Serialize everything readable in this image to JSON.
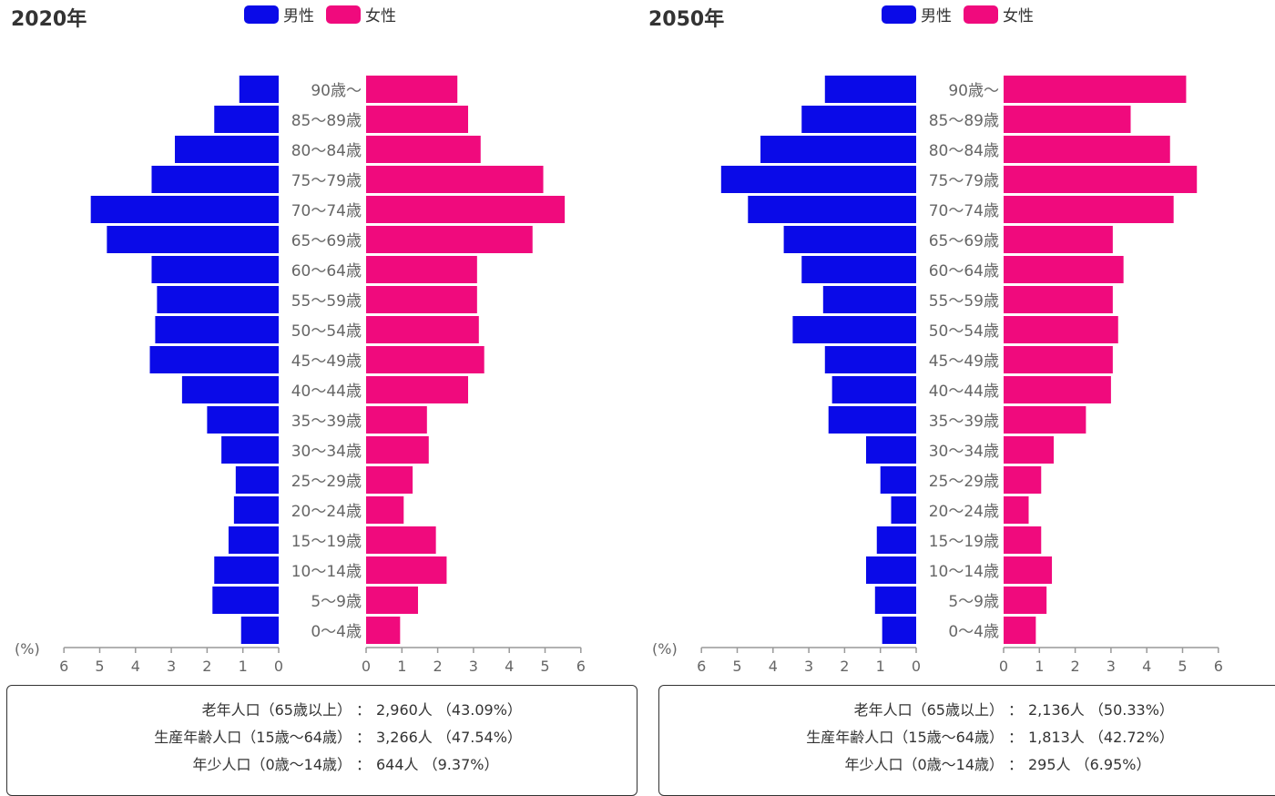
{
  "legend": {
    "male": "男性",
    "female": "女性"
  },
  "colors": {
    "male": "#0a0ae8",
    "female": "#f00a7d",
    "label": "#666666",
    "axis": "#999999",
    "title": "#333333"
  },
  "unit_label": "(%)",
  "age_groups": [
    "90歳〜",
    "85〜89歳",
    "80〜84歳",
    "75〜79歳",
    "70〜74歳",
    "65〜69歳",
    "60〜64歳",
    "55〜59歳",
    "50〜54歳",
    "45〜49歳",
    "40〜44歳",
    "35〜39歳",
    "30〜34歳",
    "25〜29歳",
    "20〜24歳",
    "15〜19歳",
    "10〜14歳",
    "5〜9歳",
    "0〜4歳"
  ],
  "chart_data": [
    {
      "type": "bar",
      "title": "2020年",
      "categories": [
        "90歳〜",
        "85〜89歳",
        "80〜84歳",
        "75〜79歳",
        "70〜74歳",
        "65〜69歳",
        "60〜64歳",
        "55〜59歳",
        "50〜54歳",
        "45〜49歳",
        "40〜44歳",
        "35〜39歳",
        "30〜34歳",
        "25〜29歳",
        "20〜24歳",
        "15〜19歳",
        "10〜14歳",
        "5〜9歳",
        "0〜4歳"
      ],
      "series": [
        {
          "name": "男性",
          "values": [
            1.1,
            1.8,
            2.9,
            3.55,
            5.25,
            4.8,
            3.55,
            3.4,
            3.45,
            3.6,
            2.7,
            2.0,
            1.6,
            1.2,
            1.25,
            1.4,
            1.8,
            1.85,
            1.05
          ]
        },
        {
          "name": "女性",
          "values": [
            2.55,
            2.85,
            3.2,
            4.95,
            5.55,
            4.65,
            3.1,
            3.1,
            3.15,
            3.3,
            2.85,
            1.7,
            1.75,
            1.3,
            1.05,
            1.95,
            2.25,
            1.45,
            0.95
          ]
        }
      ],
      "xlim": [
        0,
        6
      ],
      "ticks": [
        "6",
        "5",
        "4",
        "3",
        "2",
        "1",
        "0",
        "0",
        "1",
        "2",
        "3",
        "4",
        "5",
        "6"
      ],
      "summary": [
        {
          "label": "老年人口（65歳以上）",
          "value": "2,960人 （43.09%）"
        },
        {
          "label": "生産年齢人口（15歳〜64歳）",
          "value": "3,266人 （47.54%）"
        },
        {
          "label": "年少人口（0歳〜14歳）",
          "value": "644人 （9.37%）"
        }
      ]
    },
    {
      "type": "bar",
      "title": "2050年",
      "categories": [
        "90歳〜",
        "85〜89歳",
        "80〜84歳",
        "75〜79歳",
        "70〜74歳",
        "65〜69歳",
        "60〜64歳",
        "55〜59歳",
        "50〜54歳",
        "45〜49歳",
        "40〜44歳",
        "35〜39歳",
        "30〜34歳",
        "25〜29歳",
        "20〜24歳",
        "15〜19歳",
        "10〜14歳",
        "5〜9歳",
        "0〜4歳"
      ],
      "series": [
        {
          "name": "男性",
          "values": [
            2.55,
            3.2,
            4.35,
            5.45,
            4.7,
            3.7,
            3.2,
            2.6,
            3.45,
            2.55,
            2.35,
            2.45,
            1.4,
            1.0,
            0.7,
            1.1,
            1.4,
            1.15,
            0.95
          ]
        },
        {
          "name": "女性",
          "values": [
            5.1,
            3.55,
            4.65,
            5.4,
            4.75,
            3.05,
            3.35,
            3.05,
            3.2,
            3.05,
            3.0,
            2.3,
            1.4,
            1.05,
            0.7,
            1.05,
            1.35,
            1.2,
            0.9
          ]
        }
      ],
      "xlim": [
        0,
        6
      ],
      "ticks": [
        "6",
        "5",
        "4",
        "3",
        "2",
        "1",
        "0",
        "0",
        "1",
        "2",
        "3",
        "4",
        "5",
        "6"
      ],
      "summary": [
        {
          "label": "老年人口（65歳以上）",
          "value": "2,136人 （50.33%）"
        },
        {
          "label": "生産年齢人口（15歳〜64歳）",
          "value": "1,813人 （42.72%）"
        },
        {
          "label": "年少人口（0歳〜14歳）",
          "value": "295人 （6.95%）"
        }
      ]
    }
  ]
}
